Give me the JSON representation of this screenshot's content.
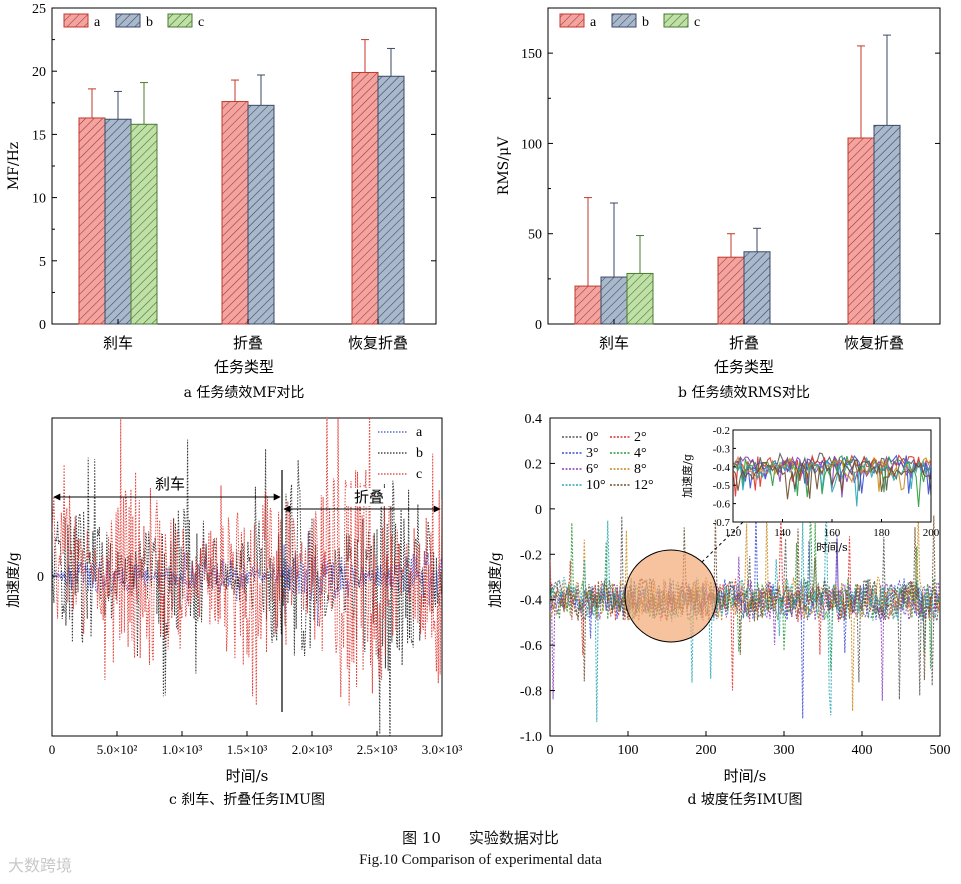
{
  "chart_data": [
    {
      "id": "a",
      "type": "bar",
      "caption": "a 任务绩效MF对比",
      "xlabel": "任务类型",
      "ylabel": "MF/Hz",
      "ylim": [
        0,
        25
      ],
      "yticks": [
        "0",
        "5",
        "10",
        "15",
        "20",
        "25"
      ],
      "categories": [
        "刹车",
        "折叠",
        "恢复折叠"
      ],
      "series": [
        {
          "name": "a",
          "values": [
            16.3,
            17.6,
            19.9
          ],
          "errors": [
            2.3,
            1.7,
            2.6
          ]
        },
        {
          "name": "b",
          "values": [
            16.2,
            17.3,
            19.6
          ],
          "errors": [
            2.2,
            2.4,
            2.2
          ]
        },
        {
          "name": "c",
          "values": [
            15.8,
            null,
            null
          ],
          "errors": [
            3.3,
            null,
            null
          ]
        }
      ],
      "legend": "top-left"
    },
    {
      "id": "b",
      "type": "bar",
      "caption": "b 任务绩效RMS对比",
      "xlabel": "任务类型",
      "ylabel": "RMS/μV",
      "ylim": [
        0,
        175
      ],
      "yticks": [
        "0",
        "50",
        "100",
        "150"
      ],
      "categories": [
        "刹车",
        "折叠",
        "恢复折叠"
      ],
      "series": [
        {
          "name": "a",
          "values": [
            21,
            37,
            103
          ],
          "errors": [
            49,
            13,
            51
          ]
        },
        {
          "name": "b",
          "values": [
            26,
            40,
            110
          ],
          "errors": [
            41,
            13,
            50
          ]
        },
        {
          "name": "c",
          "values": [
            28,
            null,
            null
          ],
          "errors": [
            21,
            null,
            null
          ]
        }
      ],
      "legend": "top-left"
    },
    {
      "id": "c",
      "type": "line",
      "caption": "c 刹车、折叠任务IMU图",
      "xlabel": "时间/s",
      "ylabel": "加速度/g",
      "xlim": [
        0,
        3000
      ],
      "xticks": [
        "0",
        "5.0×10²",
        "1.0×10³",
        "1.5×10³",
        "2.0×10³",
        "2.5×10³",
        "3.0×10³"
      ],
      "yticks": [
        "0"
      ],
      "series": [
        {
          "name": "a",
          "color": "#3b4bd6"
        },
        {
          "name": "b",
          "color": "#222222"
        },
        {
          "name": "c",
          "color": "#e0302a"
        }
      ],
      "annotations": [
        {
          "label": "刹车",
          "x_start": 0,
          "x_end": 1780
        },
        {
          "label": "折叠",
          "x_start": 1780,
          "x_end": 3000
        }
      ],
      "divider_x": 1780,
      "legend": "top-right"
    },
    {
      "id": "d",
      "type": "line",
      "caption": "d 坡度任务IMU图",
      "xlabel": "时间/s",
      "ylabel": "加速度/g",
      "xlim": [
        0,
        500
      ],
      "ylim": [
        -1.0,
        0.4
      ],
      "xticks": [
        "0",
        "100",
        "200",
        "300",
        "400",
        "500"
      ],
      "yticks": [
        "0.4",
        "0.2",
        "0",
        "-0.2",
        "-0.4",
        "-0.6",
        "-0.8",
        "-1.0"
      ],
      "series": [
        {
          "name": "0°",
          "color": "#555555"
        },
        {
          "name": "2°",
          "color": "#e0302a"
        },
        {
          "name": "3°",
          "color": "#3b4bd6"
        },
        {
          "name": "4°",
          "color": "#2a9a3a"
        },
        {
          "name": "6°",
          "color": "#8a3fb8"
        },
        {
          "name": "8°",
          "color": "#c98a1a"
        },
        {
          "name": "10°",
          "color": "#27a8b5"
        },
        {
          "name": "12°",
          "color": "#6b4d2a"
        }
      ],
      "inset": {
        "xlabel": "时间/s",
        "ylabel": "加速度/g",
        "xlim": [
          120,
          200
        ],
        "ylim": [
          -0.7,
          -0.2
        ],
        "xticks": [
          "120",
          "140",
          "160",
          "180",
          "200"
        ],
        "yticks": [
          "-0.2",
          "-0.3",
          "-0.4",
          "-0.5",
          "-0.6",
          "-0.7"
        ]
      },
      "legend": "top-left"
    }
  ],
  "figure": {
    "number": "图 10",
    "title_cn": "实验数据对比",
    "title_en": "Fig.10 Comparison of experimental data"
  },
  "watermark": "大数跨境",
  "colors": {
    "a_fill": "#f4a4a0",
    "a_stroke": "#c0392b",
    "b_fill": "#aab8cc",
    "b_stroke": "#3a4a66",
    "c_fill": "#bfe0a6",
    "c_stroke": "#4a7a30"
  }
}
